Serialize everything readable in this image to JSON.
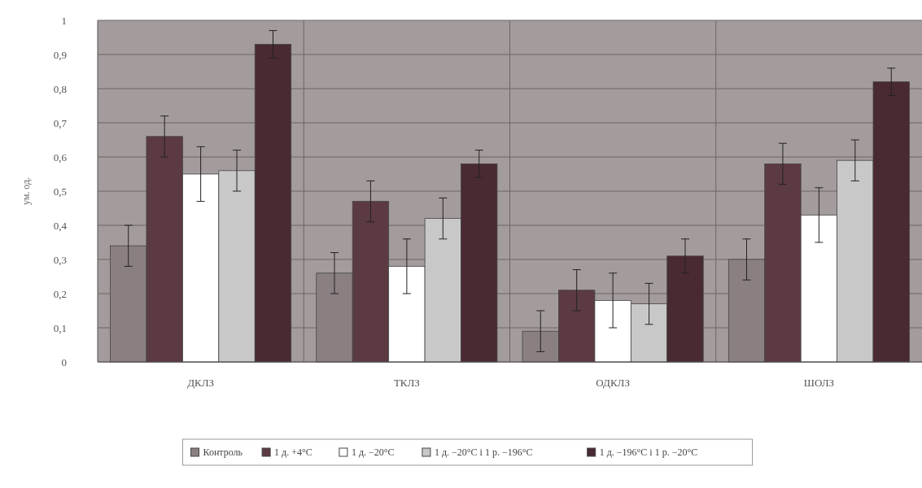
{
  "chart_data": {
    "type": "bar",
    "ylabel": "ум. од.",
    "categories": [
      "ДКЛЗ",
      "ТКЛЗ",
      "ОДКЛЗ",
      "ШОЛЗ"
    ],
    "series": [
      {
        "name": "Контроль",
        "color": "#8a8082",
        "values": [
          0.34,
          0.26,
          0.09,
          0.3
        ],
        "errors": [
          0.06,
          0.06,
          0.06,
          0.06
        ]
      },
      {
        "name": "1 д. +4°С",
        "color": "#5c3a42",
        "values": [
          0.66,
          0.47,
          0.21,
          0.58
        ],
        "errors": [
          0.06,
          0.06,
          0.06,
          0.06
        ]
      },
      {
        "name": "1 д. −20°С",
        "color": "#ffffff",
        "values": [
          0.55,
          0.28,
          0.18,
          0.43
        ],
        "errors": [
          0.08,
          0.08,
          0.08,
          0.08
        ]
      },
      {
        "name": "1 д. −20°С і 1 р. −196°С",
        "color": "#c8c8c8",
        "values": [
          0.56,
          0.42,
          0.17,
          0.59
        ],
        "errors": [
          0.06,
          0.06,
          0.06,
          0.06
        ]
      },
      {
        "name": "1 д. −196°С і 1 р. −20°С",
        "color": "#4a2a32",
        "values": [
          0.93,
          0.58,
          0.31,
          0.82
        ],
        "errors": [
          0.04,
          0.04,
          0.05,
          0.04
        ]
      }
    ],
    "ylim": [
      0,
      1
    ],
    "yticks": [
      0,
      {
        "value": 0.1,
        "label": "0,1"
      },
      {
        "value": 0.2,
        "label": "0,2"
      },
      {
        "value": 0.3,
        "label": "0,3"
      },
      {
        "value": 0.4,
        "label": "0,4"
      },
      {
        "value": 0.5,
        "label": "0,5"
      },
      {
        "value": 0.6,
        "label": "0,6"
      },
      {
        "value": 0.7,
        "label": "0,7"
      },
      {
        "value": 0.8,
        "label": "0,8"
      },
      {
        "value": 0.9,
        "label": "0,9"
      },
      1
    ],
    "grid": true,
    "legend": "bottom"
  }
}
